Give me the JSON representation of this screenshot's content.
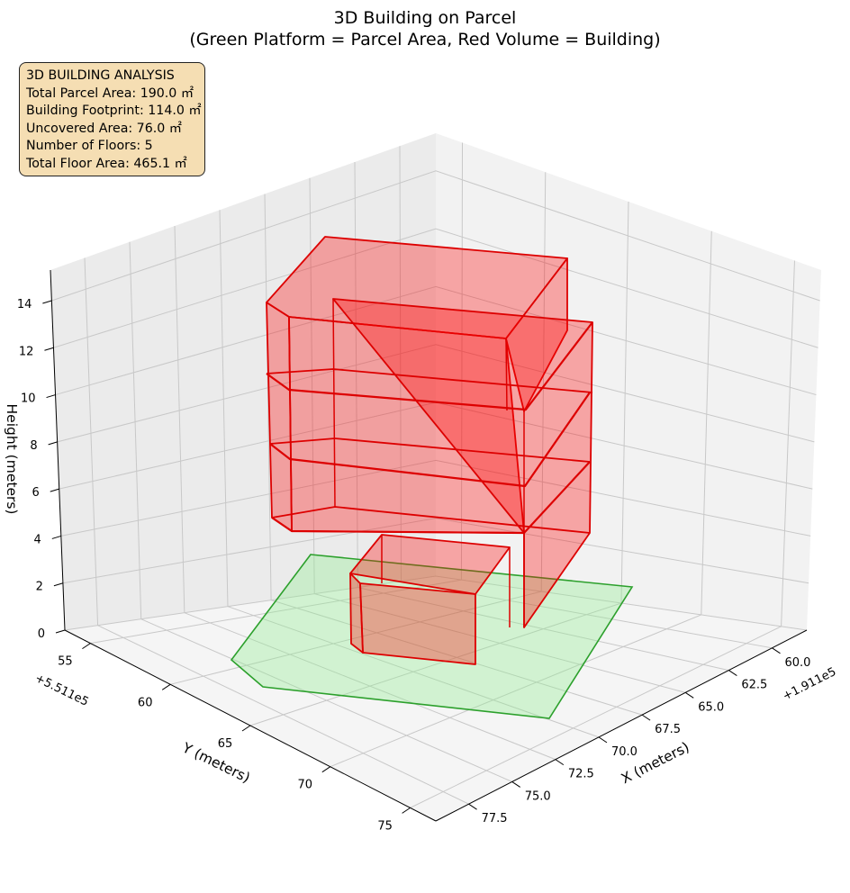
{
  "chart_data": {
    "type": "3d",
    "title_line1": "3D Building on Parcel",
    "title_line2": "(Green Platform = Parcel Area, Red Volume = Building)",
    "xlabel": "X (meters)",
    "ylabel": "Y (meters)",
    "zlabel": "Height (meters)",
    "x_offset_label": "+1.911e5",
    "y_offset_label": "+5.511e5",
    "x_ticks": [
      "60.0",
      "62.5",
      "65.0",
      "67.5",
      "70.0",
      "72.5",
      "75.0",
      "77.5"
    ],
    "y_ticks": [
      "55",
      "60",
      "65",
      "70",
      "75"
    ],
    "z_ticks": [
      "0",
      "2",
      "4",
      "6",
      "8",
      "10",
      "12",
      "14"
    ],
    "grid": true,
    "info_box": {
      "lines": [
        "3D BUILDING ANALYSIS",
        "Total Parcel Area: 190.0 ㎡",
        "Building Footprint: 114.0 ㎡",
        "Uncovered Area: 76.0 ㎡",
        "Number of Floors: 5",
        "Total Floor Area: 465.1 ㎡"
      ]
    },
    "series": [
      {
        "name": "Green Platform = Parcel Area",
        "kind": "parcel",
        "color": "#2ca02c",
        "fill": "#90ee90",
        "z": 0
      },
      {
        "name": "Red Volume = Building",
        "kind": "building",
        "color": "#dd0000",
        "fill": "#ff0000",
        "floors": 5
      }
    ]
  },
  "colors": {
    "pane_left": "#ebebeb",
    "pane_right": "#f2f2f2",
    "pane_floor": "#f5f5f5",
    "grid": "#c8c8c8",
    "building_edge": "#dd0000",
    "building_fill": "#ff0000",
    "parcel_edge": "#2ca02c",
    "parcel_fill": "#90ee90"
  }
}
